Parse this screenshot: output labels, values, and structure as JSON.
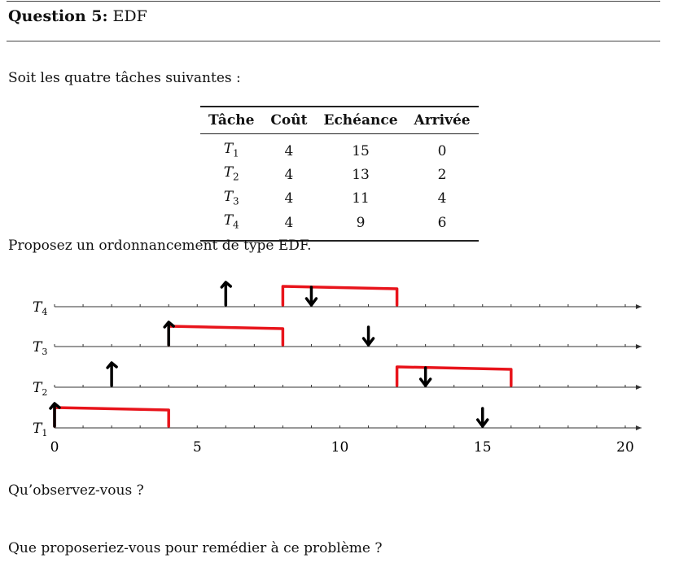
{
  "question": {
    "label": "Question 5:",
    "topic": "EDF"
  },
  "intro": "Soit les quatre tâches suivantes :",
  "table": {
    "headers": [
      "Tâche",
      "Coût",
      "Echéance",
      "Arrivée"
    ],
    "rows": [
      {
        "task": "T",
        "sub": "1",
        "cost": "4",
        "deadline": "15",
        "arrival": "0"
      },
      {
        "task": "T",
        "sub": "2",
        "cost": "4",
        "deadline": "13",
        "arrival": "2"
      },
      {
        "task": "T",
        "sub": "3",
        "cost": "4",
        "deadline": "11",
        "arrival": "4"
      },
      {
        "task": "T",
        "sub": "4",
        "cost": "4",
        "deadline": "9",
        "arrival": "6"
      }
    ]
  },
  "prompt_schedule": "Proposez un ordonnancement de type EDF.",
  "schedule": {
    "time_axis_ticks": [
      "0",
      "5",
      "10",
      "15",
      "20"
    ],
    "time_max": 20,
    "rows": [
      {
        "label": "T",
        "sub": "4",
        "arrival": 6,
        "deadline": 9,
        "exec": [
          8,
          12
        ]
      },
      {
        "label": "T",
        "sub": "3",
        "arrival": 4,
        "deadline": 11,
        "exec": [
          4,
          8
        ]
      },
      {
        "label": "T",
        "sub": "2",
        "arrival": 2,
        "deadline": 13,
        "exec": [
          12,
          16
        ]
      },
      {
        "label": "T",
        "sub": "1",
        "arrival": 0,
        "deadline": 15,
        "exec": [
          0,
          4
        ]
      }
    ],
    "colors": {
      "exec": "#e8141b",
      "marks": "#000000",
      "axis": "#333333"
    }
  },
  "question_observe": "Qu’observez-vous ?",
  "question_remedy": "Que proposeriez-vous pour remédier à ce problème ?"
}
